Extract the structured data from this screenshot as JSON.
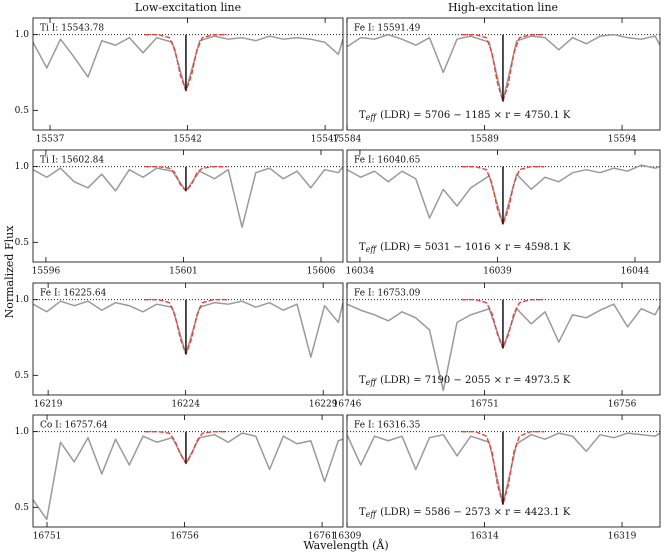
{
  "figure": {
    "column_titles": [
      "Low-excitation line",
      "High-excitation line"
    ],
    "ylabel": "Normalized Flux",
    "xlabel": "Wavelength (Å)"
  },
  "chart_data": [
    {
      "type": "line",
      "label": "Ti I: 15543.78",
      "xlim": [
        15536.38,
        15547.65
      ],
      "ylim": [
        0.37,
        1.11
      ],
      "xticks": [
        15537,
        15542,
        15547
      ],
      "yticks": [
        0.5,
        {
          "value": 1,
          "label": "1.0"
        }
      ],
      "hline": 1,
      "series": [
        {
          "color": "#9a9a9a",
          "x": [
            15536.38,
            15536.88,
            15537.38,
            15537.88,
            15538.38,
            15538.88,
            15539.38,
            15539.88,
            15540.38,
            15540.88,
            15541.44,
            15541.94,
            15542.44,
            15542.98,
            15543.48,
            15543.98,
            15544.48,
            15544.98,
            15545.48,
            15545.98,
            15546.48,
            15546.98,
            15547.48,
            15547.65
          ],
          "values": [
            0.95,
            0.78,
            0.97,
            0.85,
            0.72,
            0.96,
            0.93,
            0.98,
            0.88,
            0.98,
            0.95,
            0.63,
            0.96,
            0.99,
            0.97,
            0.98,
            0.96,
            0.99,
            0.97,
            0.98,
            0.97,
            0.95,
            0.87,
            0.97
          ]
        },
        {
          "color": "#e8413a",
          "dash": true,
          "x": [
            15540.44,
            15540.94,
            15541.34,
            15541.54,
            15541.74,
            15541.94,
            15542.14,
            15542.34,
            15542.54,
            15542.94,
            15543.44
          ],
          "values": [
            1,
            1,
            0.98,
            0.9,
            0.73,
            0.63,
            0.73,
            0.9,
            0.98,
            1,
            1
          ]
        },
        {
          "color": "#111111",
          "x": [
            15541.94,
            15541.94
          ],
          "values": [
            0.63,
            1
          ]
        }
      ]
    },
    {
      "type": "line",
      "label": "Fe I: 15591.49",
      "annotation": {
        "symbol": "T",
        "subscript": "eff",
        "text": "(LDR) = 5706 − 1185 × r = 4750.1 K"
      },
      "xlim": [
        15584,
        15595.38
      ],
      "ylim": [
        0.37,
        1.11
      ],
      "xticks": [
        15584,
        15589,
        15594
      ],
      "hline": 1,
      "series": [
        {
          "color": "#9a9a9a",
          "x": [
            15584,
            15584.5,
            15585,
            15585.5,
            15586,
            15586.5,
            15587,
            15587.5,
            15588,
            15588.5,
            15589.17,
            15589.67,
            15590.17,
            15590.7,
            15591.2,
            15591.7,
            15592.2,
            15592.7,
            15593.2,
            15593.7,
            15594.2,
            15594.7,
            15595.2,
            15595.38
          ],
          "values": [
            0.92,
            0.98,
            0.97,
            1.0,
            0.97,
            0.93,
            0.98,
            0.75,
            0.97,
            0.99,
            0.95,
            0.56,
            0.96,
            0.99,
            0.98,
            0.9,
            0.98,
            0.94,
            0.99,
            1.0,
            0.98,
            0.97,
            0.99,
            0.93
          ]
        },
        {
          "color": "#e8413a",
          "dash": true,
          "x": [
            15588.17,
            15588.67,
            15589.07,
            15589.27,
            15589.47,
            15589.67,
            15589.87,
            15590.07,
            15590.27,
            15590.67,
            15591.17
          ],
          "values": [
            1,
            1,
            0.98,
            0.88,
            0.68,
            0.56,
            0.68,
            0.88,
            0.98,
            1,
            1
          ]
        },
        {
          "color": "#111111",
          "x": [
            15589.67,
            15589.67
          ],
          "values": [
            0.56,
            1
          ]
        }
      ]
    },
    {
      "type": "line",
      "label": "Ti I: 15602.84",
      "xlim": [
        15595.53,
        15606.8
      ],
      "ylim": [
        0.37,
        1.11
      ],
      "xticks": [
        15596,
        15601,
        15606
      ],
      "yticks": [
        0.5,
        {
          "value": 1,
          "label": "1.0"
        }
      ],
      "hline": 1,
      "series": [
        {
          "color": "#9a9a9a",
          "x": [
            15595.53,
            15596.03,
            15596.53,
            15597.03,
            15597.53,
            15598.03,
            15598.53,
            15599.03,
            15599.53,
            15600.03,
            15600.59,
            15601.09,
            15601.59,
            15602.13,
            15602.63,
            15603.13,
            15603.63,
            15604.13,
            15604.63,
            15605.13,
            15605.63,
            15606.13,
            15606.63,
            15606.8
          ],
          "values": [
            0.98,
            0.93,
            0.99,
            0.9,
            0.86,
            0.95,
            0.84,
            0.98,
            0.93,
            0.99,
            0.97,
            0.84,
            0.97,
            0.92,
            0.98,
            0.6,
            0.96,
            0.99,
            0.92,
            0.97,
            0.86,
            0.98,
            0.96,
            1.0
          ]
        },
        {
          "color": "#e8413a",
          "dash": true,
          "x": [
            15599.59,
            15600.09,
            15600.49,
            15600.69,
            15600.89,
            15601.09,
            15601.29,
            15601.49,
            15601.69,
            15602.09,
            15602.59
          ],
          "values": [
            1,
            1,
            0.99,
            0.96,
            0.88,
            0.84,
            0.88,
            0.96,
            0.99,
            1,
            1
          ]
        },
        {
          "color": "#111111",
          "x": [
            15601.09,
            15601.09
          ],
          "values": [
            0.84,
            1
          ]
        }
      ]
    },
    {
      "type": "line",
      "label": "Fe I: 16040.65",
      "annotation": {
        "symbol": "T",
        "subscript": "eff",
        "text": "(LDR) = 5031 − 1016 × r = 4598.1 K"
      },
      "xlim": [
        16033.53,
        16044.91
      ],
      "ylim": [
        0.37,
        1.11
      ],
      "xticks": [
        16034,
        16039,
        16044
      ],
      "hline": 1,
      "series": [
        {
          "color": "#9a9a9a",
          "x": [
            16033.53,
            16034.03,
            16034.53,
            16035.03,
            16035.53,
            16036.03,
            16036.53,
            16037.03,
            16037.53,
            16038.03,
            16038.7,
            16039.2,
            16039.7,
            16040.23,
            16040.73,
            16041.23,
            16041.73,
            16042.23,
            16042.73,
            16043.23,
            16043.73,
            16044.23,
            16044.73,
            16044.91
          ],
          "values": [
            0.98,
            0.93,
            0.97,
            0.9,
            0.97,
            0.92,
            0.66,
            0.85,
            0.74,
            0.86,
            0.94,
            0.62,
            0.95,
            0.85,
            0.93,
            0.9,
            0.96,
            0.98,
            0.96,
            0.99,
            0.97,
            1.01,
            0.99,
            1.0
          ]
        },
        {
          "color": "#e8413a",
          "dash": true,
          "x": [
            16037.7,
            16038.2,
            16038.6,
            16038.8,
            16039.0,
            16039.2,
            16039.4,
            16039.6,
            16039.8,
            16040.2,
            16040.7
          ],
          "values": [
            1,
            1,
            0.98,
            0.89,
            0.72,
            0.62,
            0.72,
            0.89,
            0.98,
            1,
            1
          ]
        },
        {
          "color": "#111111",
          "x": [
            16039.2,
            16039.2
          ],
          "values": [
            0.62,
            1
          ]
        }
      ]
    },
    {
      "type": "line",
      "label": "Fe I: 16225.64",
      "xlim": [
        16218.45,
        16229.72
      ],
      "ylim": [
        0.37,
        1.11
      ],
      "xticks": [
        16219,
        16224,
        16229
      ],
      "yticks": [
        0.5,
        {
          "value": 1,
          "label": "1.0"
        }
      ],
      "hline": 1,
      "series": [
        {
          "color": "#9a9a9a",
          "x": [
            16218.45,
            16218.95,
            16219.45,
            16219.95,
            16220.45,
            16220.95,
            16221.45,
            16221.95,
            16222.45,
            16222.95,
            16223.51,
            16224.01,
            16224.51,
            16225.05,
            16225.55,
            16226.05,
            16226.55,
            16227.05,
            16227.55,
            16228.05,
            16228.55,
            16229.05,
            16229.55,
            16229.72
          ],
          "values": [
            0.97,
            0.92,
            0.99,
            0.96,
            0.99,
            0.93,
            0.98,
            0.96,
            0.92,
            0.97,
            0.95,
            0.64,
            0.95,
            0.98,
            0.97,
            0.99,
            0.95,
            0.98,
            0.93,
            0.97,
            0.62,
            0.96,
            0.85,
            0.98
          ]
        },
        {
          "color": "#e8413a",
          "dash": true,
          "x": [
            16222.51,
            16223.01,
            16223.41,
            16223.61,
            16223.81,
            16224.01,
            16224.21,
            16224.41,
            16224.61,
            16225.01,
            16225.51
          ],
          "values": [
            1,
            1,
            0.98,
            0.9,
            0.74,
            0.64,
            0.74,
            0.9,
            0.98,
            1,
            1
          ]
        },
        {
          "color": "#111111",
          "x": [
            16224.01,
            16224.01
          ],
          "values": [
            0.64,
            1
          ]
        }
      ]
    },
    {
      "type": "line",
      "label": "Fe I: 16753.09",
      "annotation": {
        "symbol": "T",
        "subscript": "eff",
        "text": "(LDR) = 7190 − 2055 × r = 4973.5 K"
      },
      "xlim": [
        16746,
        16757.38
      ],
      "ylim": [
        0.37,
        1.11
      ],
      "xticks": [
        16746,
        16751,
        16756
      ],
      "hline": 1,
      "series": [
        {
          "color": "#9a9a9a",
          "x": [
            16746,
            16746.5,
            16747,
            16747.5,
            16748,
            16748.5,
            16749,
            16749.5,
            16750,
            16750.5,
            16751.17,
            16751.67,
            16752.17,
            16752.7,
            16753.2,
            16753.7,
            16754.2,
            16754.7,
            16755.2,
            16755.7,
            16756.2,
            16756.7,
            16757.2,
            16757.38
          ],
          "values": [
            0.97,
            0.93,
            0.9,
            0.86,
            0.92,
            0.88,
            0.8,
            0.4,
            0.85,
            0.9,
            0.94,
            0.68,
            0.94,
            0.84,
            0.92,
            0.72,
            0.9,
            0.88,
            0.93,
            0.97,
            0.82,
            0.94,
            0.9,
            0.96
          ]
        },
        {
          "color": "#e8413a",
          "dash": true,
          "x": [
            16750.17,
            16750.67,
            16751.07,
            16751.27,
            16751.47,
            16751.67,
            16751.87,
            16752.07,
            16752.27,
            16752.67,
            16753.17
          ],
          "values": [
            1,
            1,
            0.98,
            0.91,
            0.77,
            0.68,
            0.77,
            0.91,
            0.98,
            1,
            1
          ]
        },
        {
          "color": "#111111",
          "x": [
            16751.67,
            16751.67
          ],
          "values": [
            0.68,
            1
          ]
        }
      ]
    },
    {
      "type": "line",
      "label": "Co I: 16757.64",
      "xlim": [
        16750.49,
        16761.76
      ],
      "ylim": [
        0.37,
        1.11
      ],
      "xticks": [
        16751,
        16756,
        16761
      ],
      "yticks": [
        0.5,
        {
          "value": 1,
          "label": "1.0"
        }
      ],
      "hline": 1,
      "series": [
        {
          "color": "#9a9a9a",
          "x": [
            16750.49,
            16750.99,
            16751.49,
            16751.99,
            16752.49,
            16752.99,
            16753.49,
            16753.99,
            16754.49,
            16754.99,
            16755.55,
            16756.05,
            16756.55,
            16757.09,
            16757.59,
            16758.09,
            16758.59,
            16759.09,
            16759.59,
            16760.09,
            16760.59,
            16761.09,
            16761.59,
            16761.76
          ],
          "values": [
            0.55,
            0.42,
            0.93,
            0.8,
            0.96,
            0.72,
            0.95,
            0.78,
            0.97,
            0.93,
            0.96,
            0.79,
            0.96,
            0.98,
            0.93,
            0.99,
            0.97,
            0.75,
            0.97,
            0.92,
            0.94,
            0.67,
            0.94,
            0.95
          ]
        },
        {
          "color": "#e8413a",
          "dash": true,
          "x": [
            16754.55,
            16755.05,
            16755.45,
            16755.65,
            16755.85,
            16756.05,
            16756.25,
            16756.45,
            16756.65,
            16757.05,
            16757.55
          ],
          "values": [
            1,
            1,
            0.99,
            0.94,
            0.85,
            0.79,
            0.85,
            0.94,
            0.99,
            1,
            1
          ]
        },
        {
          "color": "#111111",
          "x": [
            16756.05,
            16756.05
          ],
          "values": [
            0.79,
            1
          ]
        }
      ]
    },
    {
      "type": "line",
      "label": "Fe I: 16316.35",
      "annotation": {
        "symbol": "T",
        "subscript": "eff",
        "text": "(LDR) = 5586 − 2573 × r = 4423.1 K"
      },
      "xlim": [
        16309,
        16320.38
      ],
      "ylim": [
        0.37,
        1.11
      ],
      "xticks": [
        16309,
        16314,
        16319
      ],
      "hline": 1,
      "series": [
        {
          "color": "#9a9a9a",
          "x": [
            16309,
            16309.5,
            16310,
            16310.5,
            16311,
            16311.5,
            16312,
            16312.5,
            16313,
            16313.5,
            16314.17,
            16314.67,
            16315.17,
            16315.7,
            16316.2,
            16316.7,
            16317.2,
            16317.7,
            16318.2,
            16318.7,
            16319.2,
            16319.7,
            16320.2,
            16320.38
          ],
          "values": [
            0.98,
            0.78,
            0.97,
            0.94,
            0.97,
            0.75,
            0.96,
            0.98,
            0.84,
            0.97,
            0.93,
            0.52,
            0.92,
            0.98,
            0.95,
            0.99,
            0.97,
            0.87,
            0.98,
            0.96,
            0.99,
            0.98,
            0.97,
            0.99
          ]
        },
        {
          "color": "#e8413a",
          "dash": true,
          "x": [
            16313.17,
            16313.67,
            16314.07,
            16314.27,
            16314.47,
            16314.67,
            16314.87,
            16315.07,
            16315.27,
            16315.67,
            16316.17
          ],
          "values": [
            1,
            1,
            0.97,
            0.87,
            0.65,
            0.52,
            0.65,
            0.87,
            0.97,
            1,
            1
          ]
        },
        {
          "color": "#111111",
          "x": [
            16314.67,
            16314.67
          ],
          "values": [
            0.52,
            1
          ]
        }
      ]
    }
  ]
}
